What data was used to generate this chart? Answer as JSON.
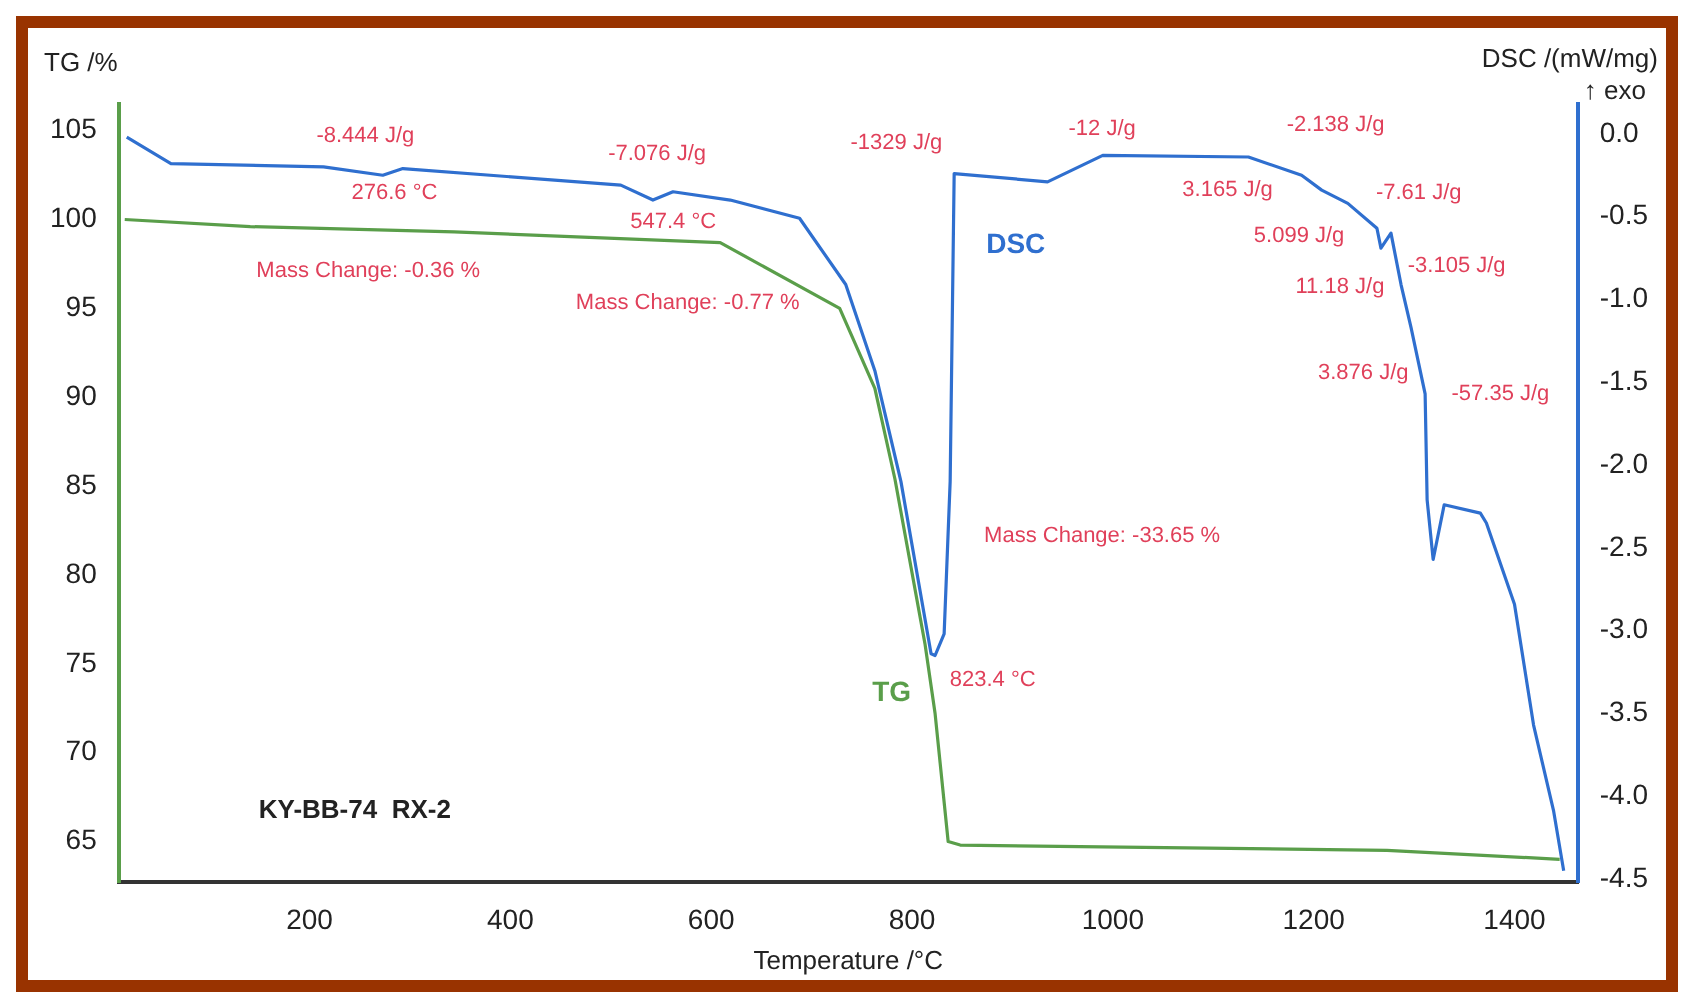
{
  "chart_data": {
    "type": "line",
    "title": "KY-BB-74  RX-2",
    "xlabel": "Temperature /°C",
    "ylabel": "TG /%",
    "y2label": "DSC /(mW/mg)",
    "xlim": [
      10,
      1463
    ],
    "xticks": [
      200,
      400,
      600,
      800,
      1000,
      1200,
      1400
    ],
    "ylim": [
      62.7,
      106.5
    ],
    "yticks": [
      65,
      70,
      75,
      80,
      85,
      90,
      95,
      100,
      105
    ],
    "y2lim": [
      -4.52,
      0.18
    ],
    "y2ticks": [
      {
        "value": -4.5,
        "label": "-4.5"
      },
      {
        "value": -4,
        "label": "-4.0"
      },
      {
        "value": -3.5,
        "label": "-3.5"
      },
      {
        "value": -3,
        "label": "-3.0"
      },
      {
        "value": -2.5,
        "label": "-2.5"
      },
      {
        "value": -2,
        "label": "-2.0"
      },
      {
        "value": -1.5,
        "label": "-1.5"
      },
      {
        "value": -1,
        "label": "-1.0"
      },
      {
        "value": -0.5,
        "label": "-0.5"
      },
      {
        "value": 0,
        "label": "0.0"
      }
    ],
    "grid": false,
    "legend": false,
    "marker": "none",
    "line_style": "solid",
    "series": [
      {
        "name": "TG",
        "color": "#5a9e4a",
        "x": [
          16,
          141,
          344,
          609,
          728,
          763,
          783,
          813,
          823,
          836,
          848,
          1273,
          1445
        ],
        "values": [
          100.0,
          99.6,
          99.3,
          98.7,
          95.0,
          90.5,
          85.4,
          76.1,
          72.2,
          65.0,
          64.8,
          64.5,
          64.0
        ]
      },
      {
        "name": "DSC",
        "color": "#2f6fcf",
        "axis": "y2",
        "x": [
          18,
          62,
          214,
          273,
          293,
          510,
          542,
          562,
          619,
          688,
          734,
          763,
          789,
          819,
          823,
          832,
          838,
          842,
          935,
          990,
          1135,
          1188,
          1208,
          1234,
          1263,
          1267,
          1277,
          1287,
          1297,
          1311,
          1313,
          1319,
          1330,
          1366,
          1372,
          1400,
          1419,
          1439,
          1449
        ],
        "values": [
          -0.02,
          -0.18,
          -0.2,
          -0.25,
          -0.21,
          -0.31,
          -0.4,
          -0.35,
          -0.4,
          -0.51,
          -0.91,
          -1.43,
          -2.1,
          -3.14,
          -3.15,
          -3.02,
          -2.1,
          -0.24,
          -0.29,
          -0.13,
          -0.14,
          -0.25,
          -0.34,
          -0.42,
          -0.57,
          -0.69,
          -0.6,
          -0.91,
          -1.17,
          -1.57,
          -2.21,
          -2.57,
          -2.24,
          -2.29,
          -2.35,
          -2.84,
          -3.57,
          -4.09,
          -4.45
        ]
      }
    ],
    "annotations": [
      "↑ exo",
      "-8.444 J/g",
      "276.6 °C",
      "Mass Change: -0.36 %",
      "-7.076 J/g",
      "547.4 °C",
      "Mass Change: -0.77 %",
      "-1329 J/g",
      "-12 J/g",
      "-2.138 J/g",
      "3.165 J/g",
      "-7.61 J/g",
      "5.099 J/g",
      "-3.105 J/g",
      "11.18 J/g",
      "3.876 J/g",
      "-57.35 J/g",
      "Mass Change: -33.65 %",
      "823.4 °C"
    ]
  }
}
